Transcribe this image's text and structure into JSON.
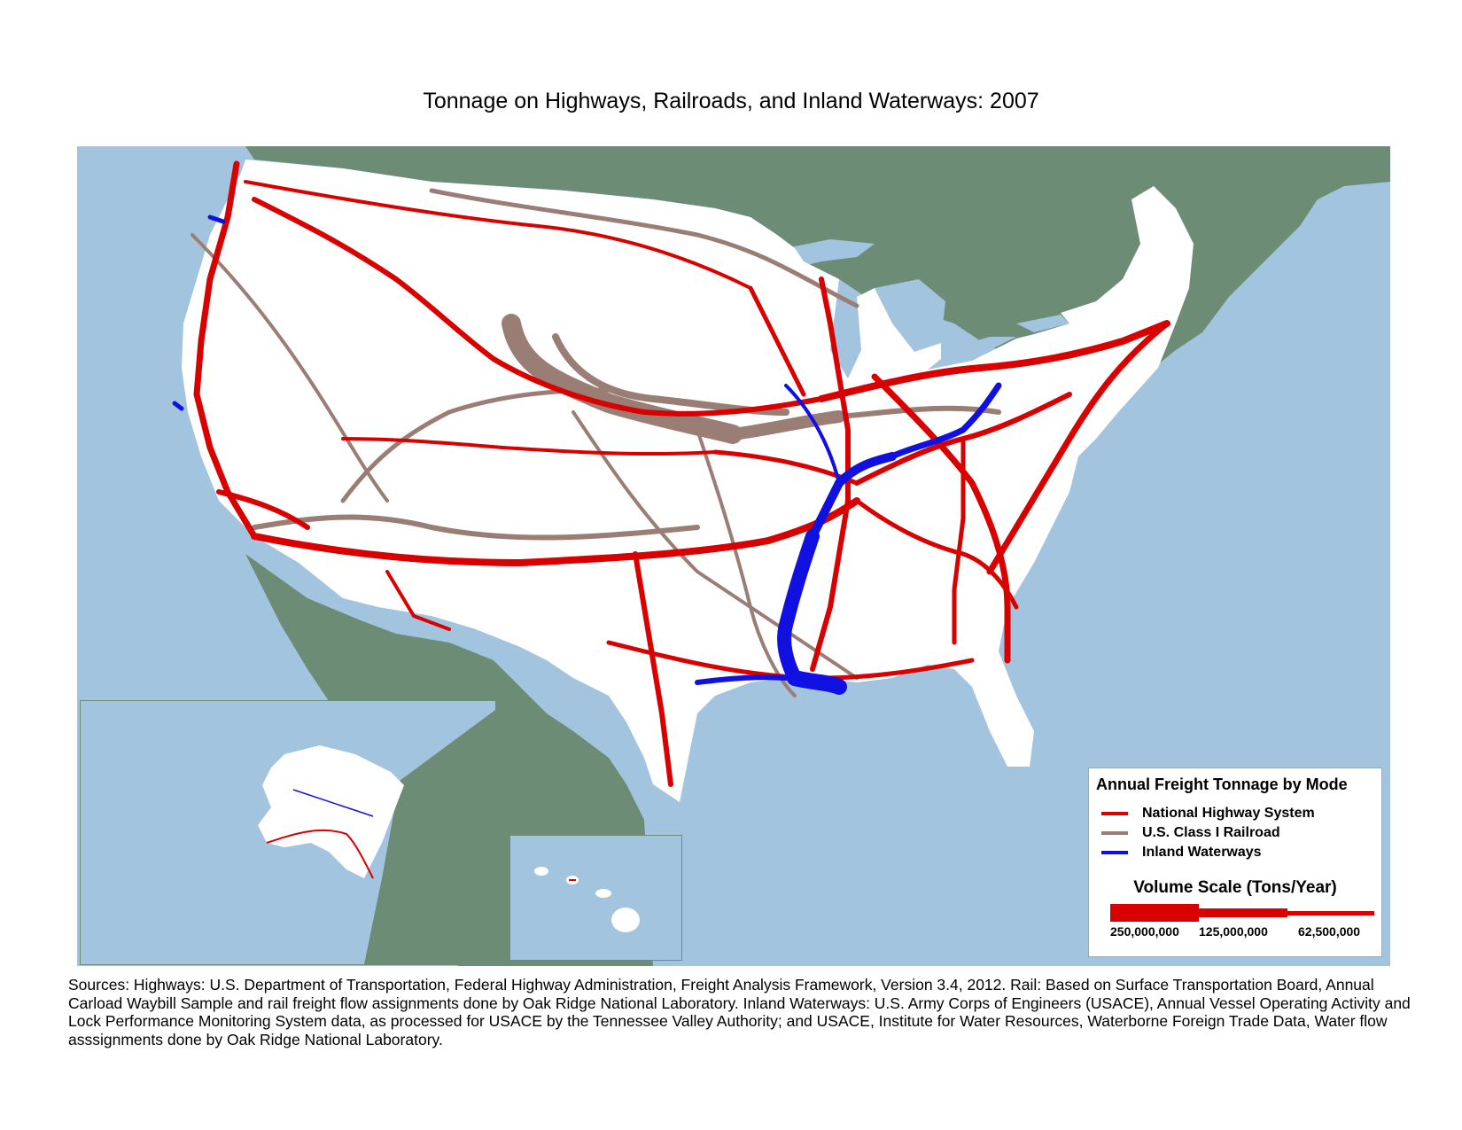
{
  "title": "Tonnage on Highways, Railroads, and Inland Waterways: 2007",
  "colors": {
    "ocean": "#a3c4de",
    "foreign_land": "#6d8c75",
    "us_land": "#ffffff",
    "highway": "#d90000",
    "railroad": "#9a7d74",
    "waterway": "#1010e0"
  },
  "legend": {
    "title": "Annual Freight Tonnage by Mode",
    "items": [
      {
        "label": "National Highway System",
        "color": "#d90000"
      },
      {
        "label": "U.S. Class I Railroad",
        "color": "#9a7d74"
      },
      {
        "label": "Inland Waterways",
        "color": "#1010e0"
      }
    ],
    "volume_scale_title": "Volume Scale (Tons/Year)",
    "volume_scale_values": [
      "250,000,000",
      "125,000,000",
      "62,500,000"
    ]
  },
  "sources": "Sources:  Highways:  U.S. Department of Transportation, Federal Highway Administration, Freight Analysis Framework, Version 3.4, 2012. Rail:  Based on Surface Transportation Board, Annual Carload Waybill Sample and rail freight flow assignments done by Oak Ridge National Laboratory.  Inland Waterways: U.S. Army Corps of Engineers (USACE), Annual Vessel Operating Activity and Lock Performance Monitoring System data, as processed for USACE by the Tennessee Valley Authority; and USACE, Institute for Water Resources, Waterborne Foreign Trade Data, Water flow asssignments done by Oak Ridge National Laboratory."
}
